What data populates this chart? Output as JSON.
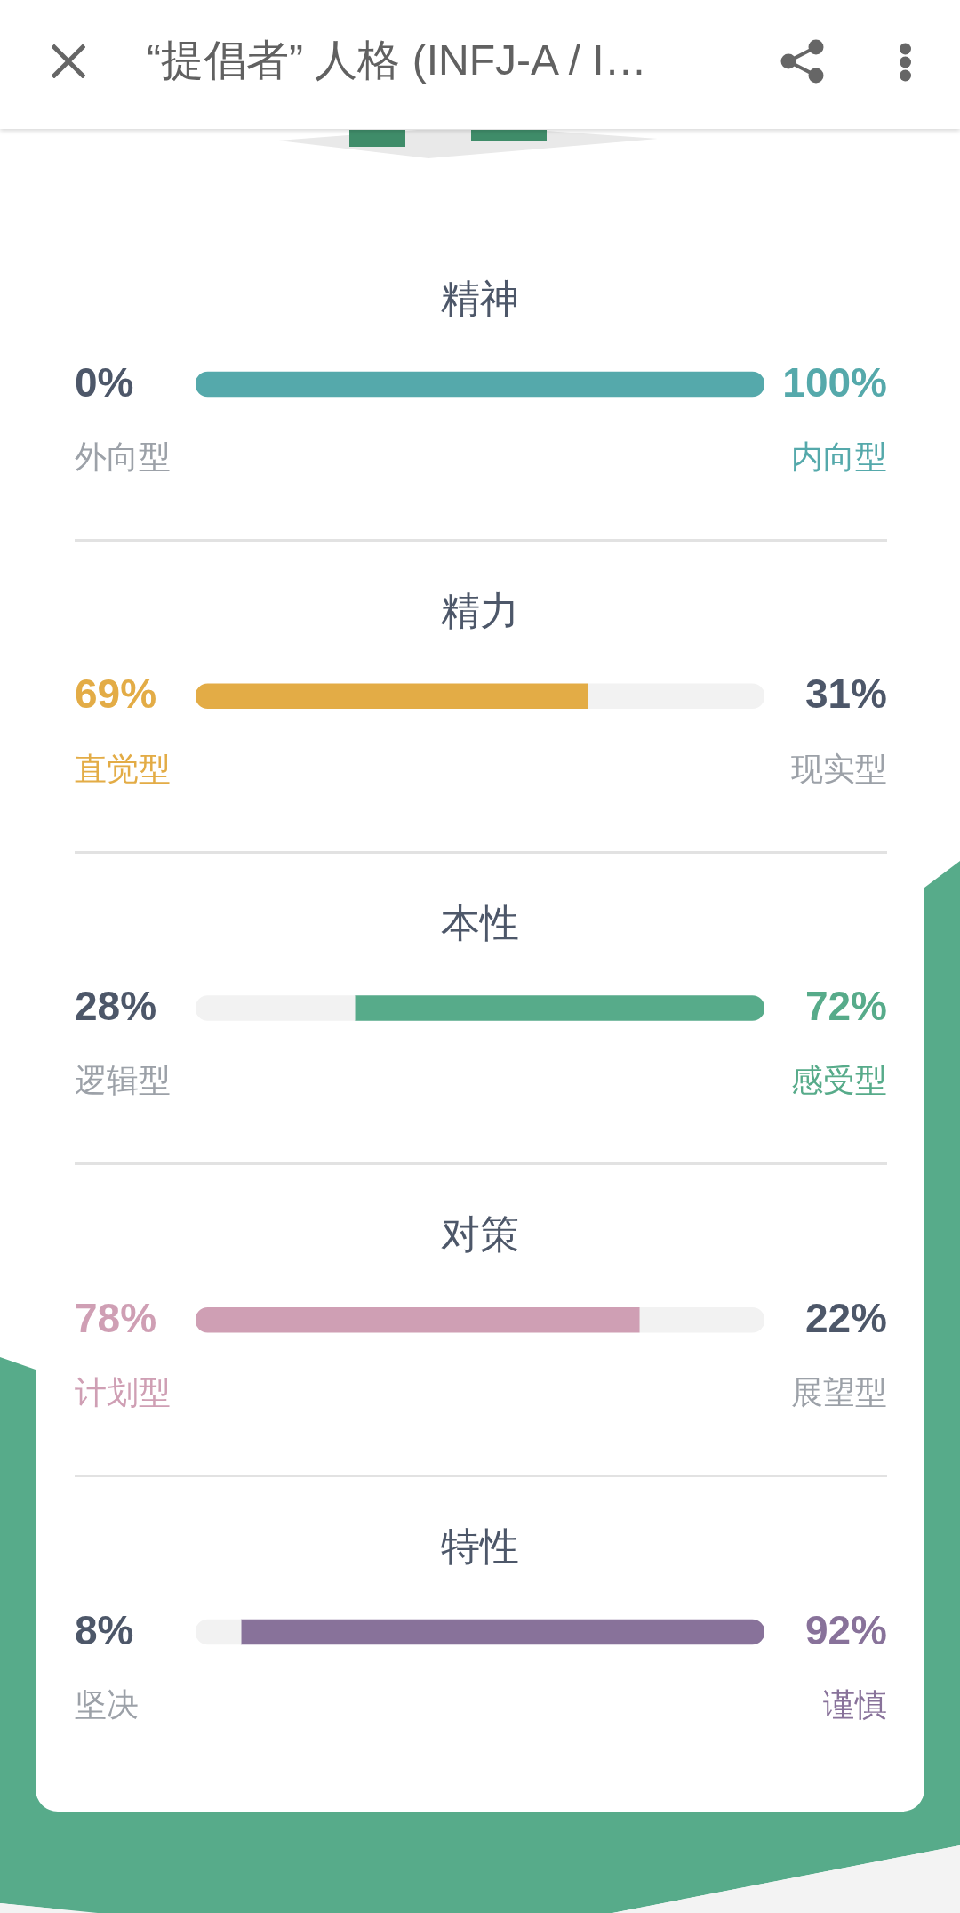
{
  "chart_data": [
    {
      "type": "other",
      "title": "“提倡者” 人格 (INFJ-A / I…"
    },
    {
      "type": "bar",
      "orientation": "horizontal",
      "stacked": true,
      "categories": [
        "精神",
        "精力",
        "本性",
        "对策",
        "特性"
      ],
      "xlim": [
        0,
        100
      ],
      "tick_labels": "y",
      "grid": "y",
      "series": [
        {
          "colors": [
            "#f2f2f2",
            "#e3ac46",
            "#f2f2f2",
            "#cf9fb4",
            "#f2f2f2"
          ],
          "values": [
            0,
            69,
            28,
            78,
            8
          ],
          "value_labels": [
            "0%",
            "69%",
            "28%",
            "78%",
            "8%"
          ]
        },
        {
          "colors": [
            "#55a9ab",
            "#f2f2f2",
            "#57ab8a",
            "#f2f2f2",
            "#88729a"
          ],
          "values": [
            100,
            31,
            72,
            22,
            92
          ],
          "value_labels": [
            "100%",
            "31%",
            "72%",
            "22%",
            "92%"
          ]
        }
      ],
      "annotations": [
        "外向型",
        "内向型",
        "直觉型",
        "现实型",
        "逻辑型",
        "感受型",
        "计划型",
        "展望型",
        "坚决",
        "谨慎"
      ]
    }
  ]
}
